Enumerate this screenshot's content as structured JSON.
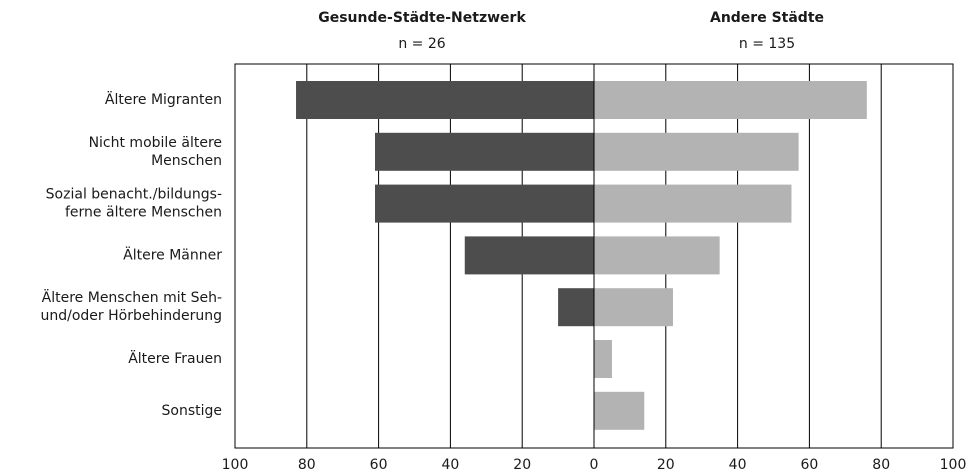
{
  "chart_data": {
    "type": "butterfly",
    "categories": [
      "Ältere Migranten",
      "Nicht mobile ältere\nMenschen",
      "Sozial benacht./bildungs-\nferne ältere Menschen",
      "Ältere Männer",
      "Ältere Menschen mit Seh-\nund/oder Hörbehinderung",
      "Ältere Frauen",
      "Sonstige"
    ],
    "series": [
      {
        "name": "Gesunde-Städte-Netzwerk",
        "subtitle": "n = 26",
        "color": "#4d4d4d",
        "side": "left",
        "values": [
          83,
          61,
          61,
          36,
          10,
          0,
          0
        ]
      },
      {
        "name": "Andere Städte",
        "subtitle": "n = 135",
        "color": "#b3b3b3",
        "side": "right",
        "values": [
          76,
          57,
          55,
          35,
          22,
          5,
          14
        ]
      }
    ],
    "xlim": [
      0,
      100
    ],
    "xticks_left": [
      100,
      80,
      60,
      40,
      20
    ],
    "xticks_right": [
      0,
      20,
      40,
      60,
      80,
      100
    ],
    "grid": true
  }
}
